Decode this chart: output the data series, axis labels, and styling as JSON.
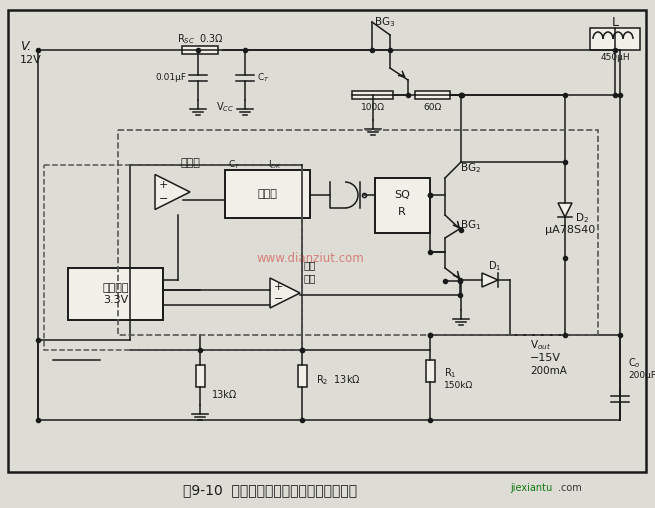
{
  "figsize": [
    6.55,
    5.08
  ],
  "dpi": 100,
  "bg_color": "#deddd5",
  "fig_bg": "#deddd5",
  "lw": 1.1,
  "line_color": "#1a1a1a",
  "face_color": "#e8e7df",
  "white": "#f0efe8",
  "caption": "图9-10  开关稳压器构成的负输出电压电路",
  "wm_cn": "www.dianziut.com",
  "wm_cn_color": "#cc2222",
  "wm_en": "jiexiantu",
  "wm_com": ".com",
  "wm_en_color": "#117711"
}
